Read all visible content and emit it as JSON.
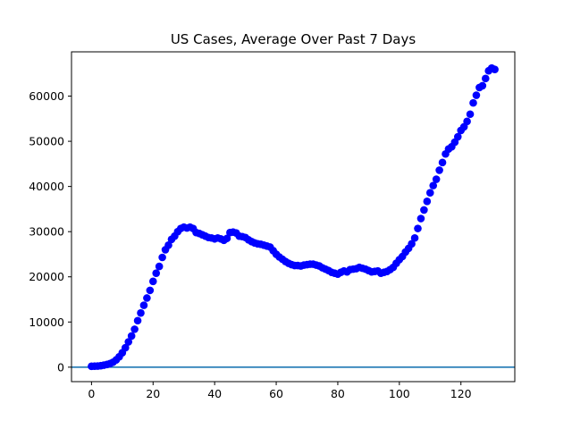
{
  "chart_data": {
    "type": "scatter",
    "title": "US Cases, Average Over Past 7 Days",
    "xlabel": "",
    "ylabel": "",
    "xlim": [
      -6.5,
      137.5
    ],
    "ylim": [
      -3200,
      69800
    ],
    "xticks": [
      0,
      20,
      40,
      60,
      80,
      100,
      120
    ],
    "yticks": [
      0,
      10000,
      20000,
      30000,
      40000,
      50000,
      60000
    ],
    "grid": false,
    "baseline": {
      "y": 0,
      "color": "#1f77b4"
    },
    "series": [
      {
        "marker_color": "#0000ff",
        "x": [
          0,
          1,
          2,
          3,
          4,
          5,
          6,
          7,
          8,
          9,
          10,
          11,
          12,
          13,
          14,
          15,
          16,
          17,
          18,
          19,
          20,
          21,
          22,
          23,
          24,
          25,
          26,
          27,
          28,
          29,
          30,
          31,
          32,
          33,
          34,
          35,
          36,
          37,
          38,
          39,
          40,
          41,
          42,
          43,
          44,
          45,
          46,
          47,
          48,
          49,
          50,
          51,
          52,
          53,
          54,
          55,
          56,
          57,
          58,
          59,
          60,
          61,
          62,
          63,
          64,
          65,
          66,
          67,
          68,
          69,
          70,
          71,
          72,
          73,
          74,
          75,
          76,
          77,
          78,
          79,
          80,
          81,
          82,
          83,
          84,
          85,
          86,
          87,
          88,
          89,
          90,
          91,
          92,
          93,
          94,
          95,
          96,
          97,
          98,
          99,
          100,
          101,
          102,
          103,
          104,
          105,
          106,
          107,
          108,
          109,
          110,
          111,
          112,
          113,
          114,
          115,
          116,
          117,
          118,
          119,
          120,
          121,
          122,
          123,
          124,
          125,
          126,
          127,
          128,
          129,
          130,
          131
        ],
        "y": [
          200,
          220,
          250,
          320,
          450,
          600,
          800,
          1100,
          1600,
          2300,
          3200,
          4300,
          5600,
          6900,
          8400,
          10300,
          12000,
          13700,
          15300,
          17000,
          19000,
          20800,
          22300,
          24300,
          26000,
          27000,
          28300,
          29000,
          30000,
          30700,
          31000,
          30800,
          31000,
          30700,
          29800,
          29600,
          29300,
          29000,
          28700,
          28600,
          28400,
          28600,
          28400,
          28100,
          28500,
          29800,
          29900,
          29700,
          29000,
          28900,
          28700,
          28200,
          27800,
          27500,
          27300,
          27200,
          27000,
          26800,
          26600,
          25800,
          25000,
          24400,
          23900,
          23400,
          23000,
          22700,
          22500,
          22500,
          22400,
          22600,
          22700,
          22800,
          22800,
          22600,
          22400,
          22000,
          21700,
          21400,
          21000,
          20800,
          20600,
          21000,
          21300,
          21100,
          21600,
          21700,
          21800,
          22100,
          21900,
          21700,
          21400,
          21100,
          21200,
          21300,
          20800,
          21000,
          21200,
          21600,
          22100,
          23000,
          23800,
          24500,
          25500,
          26300,
          27300,
          28600,
          30700,
          32900,
          34800,
          36700,
          38600,
          40200,
          41600,
          43600,
          45300,
          47200,
          48300,
          48800,
          49800,
          51000,
          52400,
          53200,
          54400,
          56000,
          58500,
          60200,
          61900,
          62300,
          63900,
          65600,
          66200,
          65900
        ]
      }
    ]
  }
}
